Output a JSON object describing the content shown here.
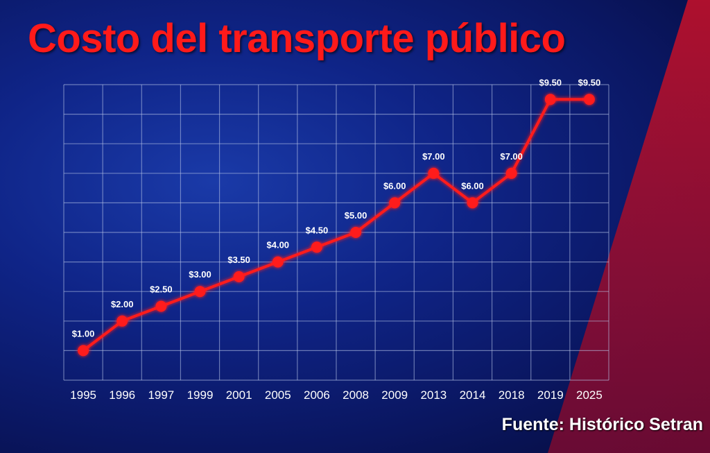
{
  "chart_data": {
    "type": "line",
    "title": "Costo del transporte público",
    "source": "Fuente: Histórico Setran",
    "categories": [
      "1995",
      "1996",
      "1997",
      "1999",
      "2001",
      "2005",
      "2006",
      "2008",
      "2009",
      "2013",
      "2014",
      "2018",
      "2019",
      "2025"
    ],
    "values": [
      1.0,
      2.0,
      2.5,
      3.0,
      3.5,
      4.0,
      4.5,
      5.0,
      6.0,
      7.0,
      6.0,
      7.0,
      9.5,
      9.5
    ],
    "data_labels": [
      "$1.00",
      "$2.00",
      "$2.50",
      "$3.00",
      "$3.50",
      "$4.00",
      "$4.50",
      "$5.00",
      "$6.00",
      "$7.00",
      "$6.00",
      "$7.00",
      "$9.50",
      "$9.50"
    ],
    "ylim": [
      0,
      10
    ],
    "grid": true,
    "colors": {
      "line": "#ff1a1a",
      "title": "#ff1a1a",
      "grid": "#b8c4e8",
      "labels": "#ffffff",
      "accent_stripe": "#d01030"
    }
  }
}
